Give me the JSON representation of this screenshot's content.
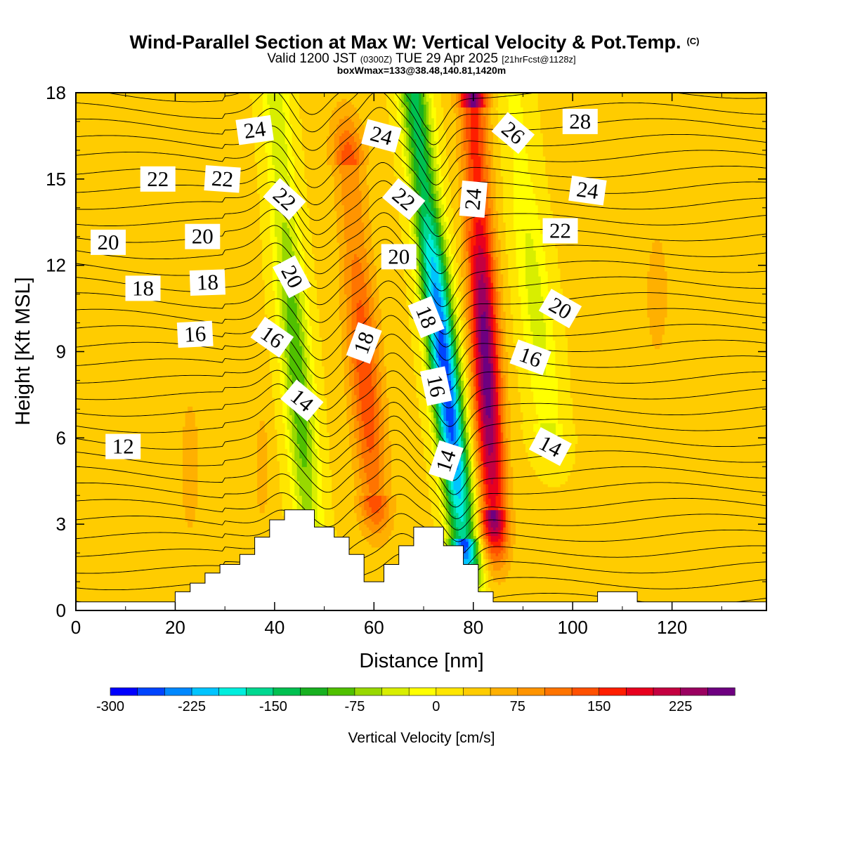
{
  "title": {
    "main": "Wind-Parallel Section at Max W: Vertical Velocity & Pot.Temp.",
    "copyright": "(C)",
    "valid_prefix": "Valid 1200 JST",
    "valid_utc": "(0300Z)",
    "valid_suffix": "TUE 29 Apr 2025",
    "forecast": "[21hrFcst@1128z]",
    "box_info": "boxWmax=133@38.48,140.81,1420m"
  },
  "chart_data": {
    "type": "heatmap",
    "xlabel": "Distance [nm]",
    "ylabel": "Height [Kft MSL]",
    "xlim": [
      0,
      139
    ],
    "ylim": [
      0,
      18
    ],
    "xticks": [
      "0",
      "20",
      "40",
      "60",
      "80",
      "100",
      "120"
    ],
    "yticks": [
      "0",
      "3",
      "6",
      "9",
      "12",
      "15",
      "18"
    ],
    "colorbar": {
      "label": "Vertical Velocity [cm/s]",
      "min": -300,
      "max": 250,
      "step": 25,
      "tick_values": [
        -300,
        -225,
        -150,
        -75,
        0,
        75,
        150,
        225
      ],
      "tick_labels": [
        "-300",
        "-225",
        "-150",
        "-75",
        "0",
        "75",
        "150",
        "225"
      ],
      "colors": [
        "#0000ff",
        "#0044ff",
        "#0088ff",
        "#00c4ff",
        "#00eedd",
        "#00d890",
        "#00c050",
        "#18b020",
        "#50c000",
        "#98d800",
        "#d8ee00",
        "#ffff00",
        "#ffe600",
        "#ffcc00",
        "#ffb000",
        "#ff9400",
        "#ff7400",
        "#ff5000",
        "#ff1e00",
        "#e8001e",
        "#c40040",
        "#9a0060",
        "#6e0080"
      ]
    },
    "background_w": 30,
    "w_features": [
      {
        "name": "downdraft-west",
        "peak": -125,
        "bottom": [
          47,
          2.8
        ],
        "top": [
          40,
          18.0
        ],
        "width": 3.0
      },
      {
        "name": "updraft-west",
        "peak": 115,
        "bottom": [
          60,
          4.0
        ],
        "top": [
          55,
          15.5
        ],
        "width": 3.2
      },
      {
        "name": "downdraft-east",
        "peak": -300,
        "bottom": [
          78,
          2.5
        ],
        "top": [
          68,
          18.0
        ],
        "width": 3.0
      },
      {
        "name": "updraft-east",
        "peak": 235,
        "bottom": [
          84,
          3.5
        ],
        "top": [
          80,
          17.5
        ],
        "width": 2.8
      },
      {
        "name": "downdraft-lee",
        "peak": -65,
        "bottom": [
          95,
          6.5
        ],
        "top": [
          88,
          18.0
        ],
        "width": 3.5
      }
    ],
    "terrain": {
      "x": [
        0,
        20,
        20,
        23,
        23,
        26,
        26,
        29,
        29,
        33,
        33,
        36,
        36,
        39,
        39,
        42,
        42,
        48,
        48,
        52,
        52,
        55,
        55,
        58,
        58,
        62,
        62,
        65,
        65,
        68,
        68,
        71,
        71,
        74,
        74,
        78,
        78,
        81,
        81,
        84,
        84,
        105,
        105,
        107,
        107,
        113,
        113,
        139
      ],
      "z": [
        0.3,
        0.3,
        0.65,
        0.65,
        0.95,
        0.95,
        1.3,
        1.3,
        1.6,
        1.6,
        1.95,
        1.95,
        2.55,
        2.55,
        3.15,
        3.15,
        3.5,
        3.5,
        2.9,
        2.9,
        2.55,
        2.55,
        1.95,
        1.95,
        1.0,
        1.0,
        1.6,
        1.6,
        2.25,
        2.25,
        2.9,
        2.9,
        2.9,
        2.9,
        2.25,
        2.25,
        1.6,
        1.6,
        0.65,
        0.65,
        0.3,
        0.3,
        0.65,
        0.65,
        0.65,
        0.65,
        0.3,
        0.3
      ]
    },
    "theta_contour_labels": [
      {
        "text": "24",
        "x": 36,
        "y": 16.7,
        "angle": -8
      },
      {
        "text": "24",
        "x": 61.5,
        "y": 16.5,
        "angle": 15
      },
      {
        "text": "26",
        "x": 88,
        "y": 16.6,
        "angle": 40
      },
      {
        "text": "28",
        "x": 101.5,
        "y": 17.0,
        "angle": 0
      },
      {
        "text": "22",
        "x": 16.5,
        "y": 15.0,
        "angle": 0
      },
      {
        "text": "22",
        "x": 29.5,
        "y": 15.0,
        "angle": 4
      },
      {
        "text": "22",
        "x": 42,
        "y": 14.3,
        "angle": 42
      },
      {
        "text": "22",
        "x": 66,
        "y": 14.3,
        "angle": 40
      },
      {
        "text": "24",
        "x": 80,
        "y": 14.3,
        "angle": -85
      },
      {
        "text": "24",
        "x": 103,
        "y": 14.6,
        "angle": 8
      },
      {
        "text": "20",
        "x": 6.5,
        "y": 12.8,
        "angle": 0
      },
      {
        "text": "20",
        "x": 25.5,
        "y": 13.0,
        "angle": 0
      },
      {
        "text": "22",
        "x": 97.5,
        "y": 13.2,
        "angle": 0
      },
      {
        "text": "20",
        "x": 65,
        "y": 12.3,
        "angle": 0
      },
      {
        "text": "20",
        "x": 43.5,
        "y": 11.6,
        "angle": 62
      },
      {
        "text": "20",
        "x": 97.5,
        "y": 10.5,
        "angle": 30
      },
      {
        "text": "18",
        "x": 13.5,
        "y": 11.2,
        "angle": 0
      },
      {
        "text": "18",
        "x": 26.5,
        "y": 11.4,
        "angle": -2
      },
      {
        "text": "18",
        "x": 70.5,
        "y": 10.2,
        "angle": 68
      },
      {
        "text": "16",
        "x": 24,
        "y": 9.6,
        "angle": -3
      },
      {
        "text": "16",
        "x": 39.5,
        "y": 9.5,
        "angle": 35
      },
      {
        "text": "18",
        "x": 58,
        "y": 9.3,
        "angle": -70
      },
      {
        "text": "16",
        "x": 91.5,
        "y": 8.8,
        "angle": 20
      },
      {
        "text": "16",
        "x": 72.5,
        "y": 7.8,
        "angle": 78
      },
      {
        "text": "14",
        "x": 45.5,
        "y": 7.3,
        "angle": 40
      },
      {
        "text": "14",
        "x": 95.5,
        "y": 5.7,
        "angle": 28
      },
      {
        "text": "12",
        "x": 9.5,
        "y": 5.7,
        "angle": 0
      },
      {
        "text": "14",
        "x": 74.5,
        "y": 5.2,
        "angle": -72
      }
    ]
  }
}
